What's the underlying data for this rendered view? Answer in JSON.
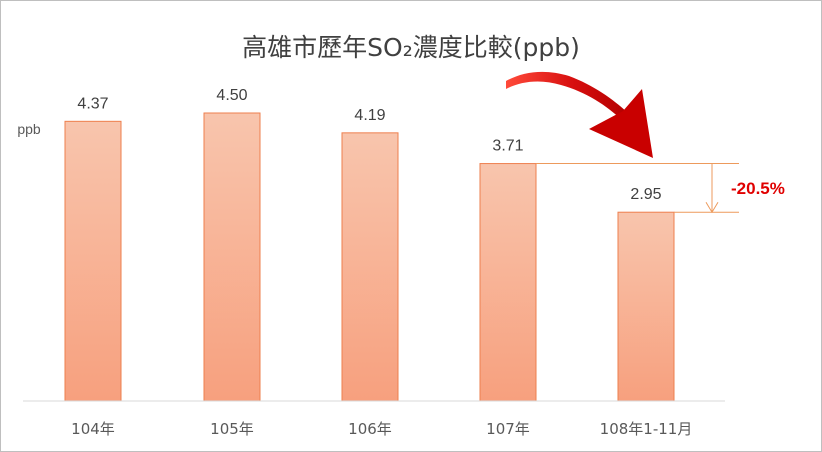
{
  "chart_data": {
    "type": "bar",
    "title": "高雄市歷年SO₂濃度比較(ppb)",
    "ylabel": "ppb",
    "xlabel": "",
    "categories": [
      "104年",
      "105年",
      "106年",
      "107年",
      "108年1-11月"
    ],
    "values": [
      4.37,
      4.5,
      4.19,
      3.71,
      2.95
    ],
    "value_labels": [
      "4.37",
      "4.50",
      "4.19",
      "3.71",
      "2.95"
    ],
    "ylim": [
      0,
      4.5
    ],
    "grid": false,
    "legend": "none",
    "annotation": {
      "text": "-20.5%",
      "from_category": "107年",
      "to_category": "108年1-11月",
      "color": "#e00000"
    }
  },
  "colors": {
    "bar_top": "#f8c5ad",
    "bar_bottom": "#f7a07e",
    "bar_stroke": "#ee7f4e",
    "axis": "#d9d9d9",
    "annotation_line": "#ed9a5c",
    "arrow_red": "#d40000"
  }
}
